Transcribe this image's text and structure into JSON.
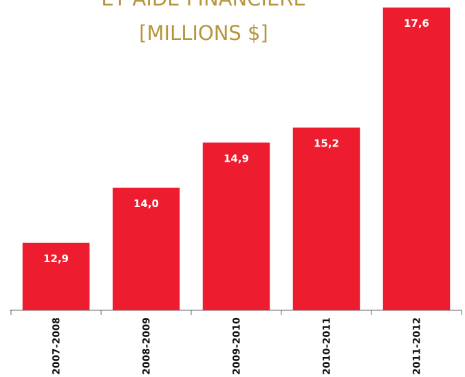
{
  "chart_data": {
    "type": "bar",
    "title": [
      "ET AIDE FINANCIÈRE",
      "[MILLIONS $]"
    ],
    "categories": [
      "2007-2008",
      "2008-2009",
      "2009-2010",
      "2010-2011",
      "2011-2012"
    ],
    "values": [
      12.9,
      14.0,
      14.9,
      15.2,
      17.6
    ],
    "value_labels": [
      "12,9",
      "14,0",
      "14,9",
      "15,2",
      "17,6"
    ],
    "color": "#ed1c2e",
    "ylim": [
      11.55,
      17.75
    ]
  }
}
